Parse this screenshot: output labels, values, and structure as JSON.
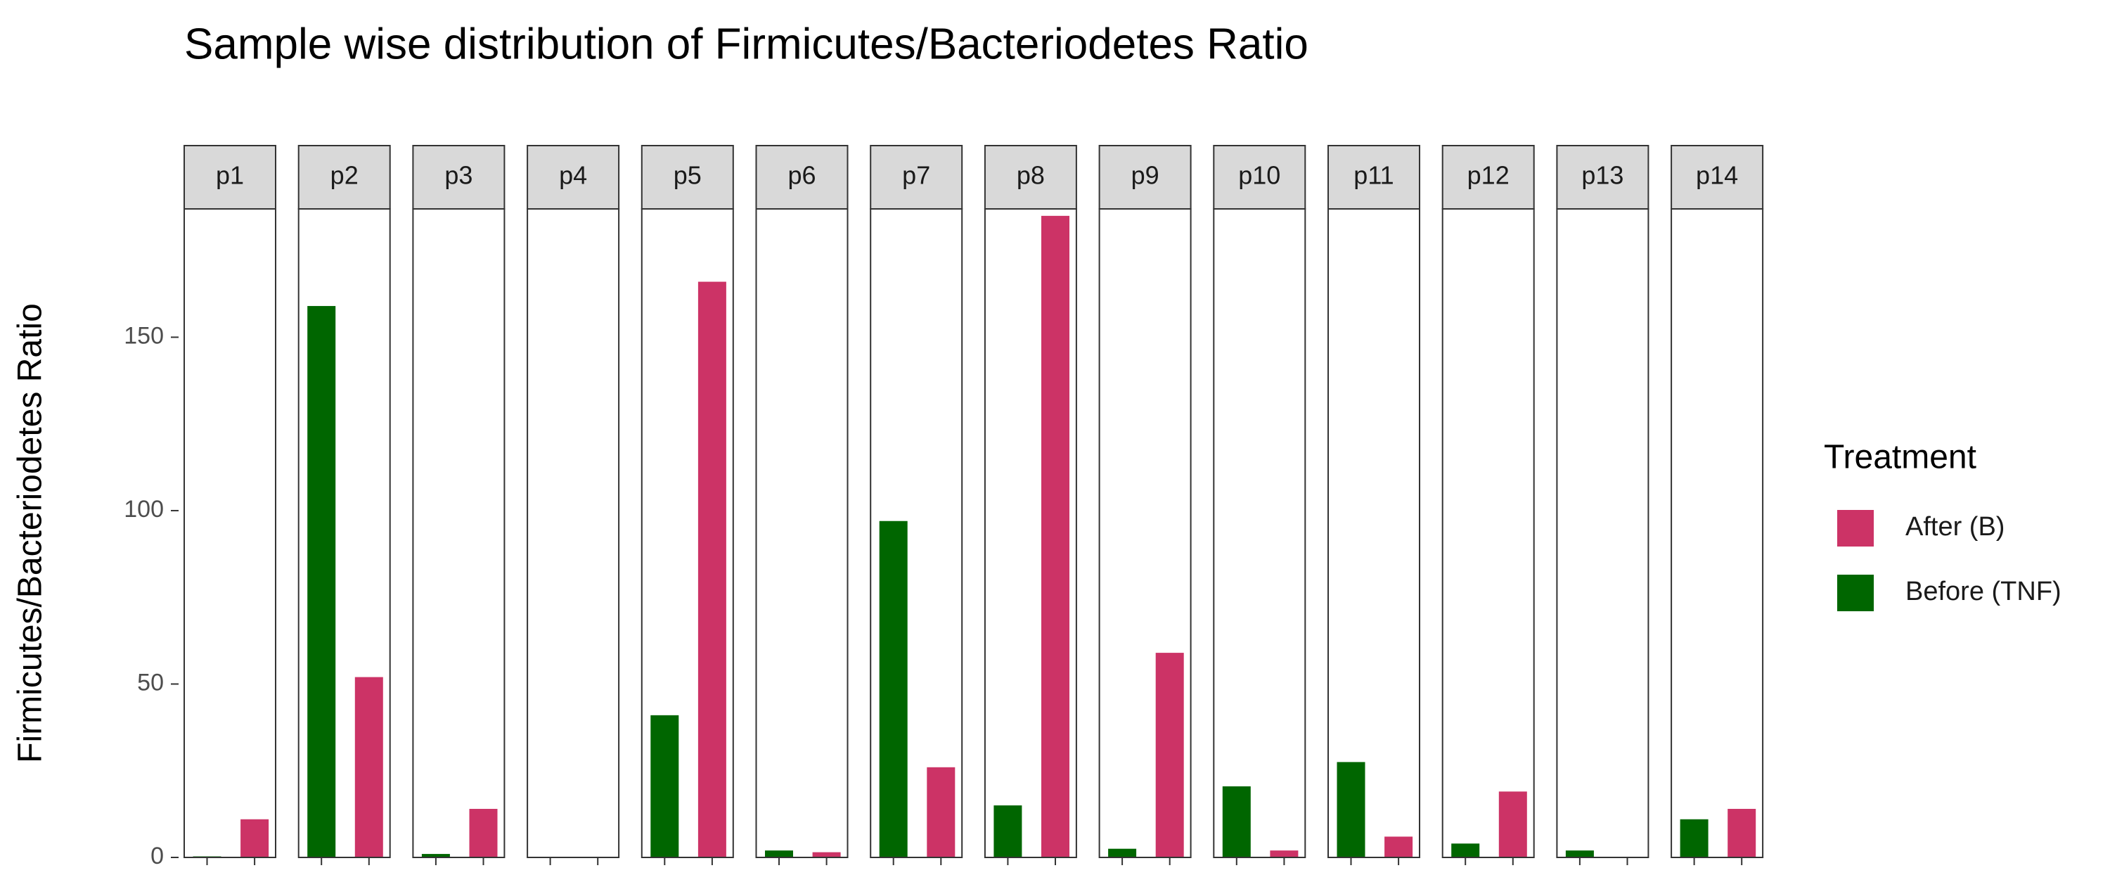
{
  "chart_data": {
    "type": "bar",
    "title": "Sample wise distribution of Firmicutes/Bacteriodetes Ratio",
    "y_label": "Firmicutes/Bacteriodetes Ratio",
    "legend_title": "Treatment",
    "categories": [
      "p1",
      "p2",
      "p3",
      "p4",
      "p5",
      "p6",
      "p7",
      "p8",
      "p9",
      "p10",
      "p11",
      "p12",
      "p13",
      "p14"
    ],
    "series": [
      {
        "name": "After (B)",
        "color": "#cc3366",
        "values": [
          11,
          52,
          14,
          0,
          166,
          1.5,
          26,
          185,
          59,
          2,
          6,
          19,
          0,
          14
        ]
      },
      {
        "name": "Before (TNF)",
        "color": "#006600",
        "values": [
          0.3,
          159,
          1,
          0,
          41,
          2,
          97,
          15,
          2.5,
          20.5,
          27.5,
          4,
          2,
          11
        ]
      }
    ],
    "ylim": [
      0,
      187
    ],
    "yticks": [
      0,
      50,
      100,
      150
    ],
    "legend": "right"
  }
}
